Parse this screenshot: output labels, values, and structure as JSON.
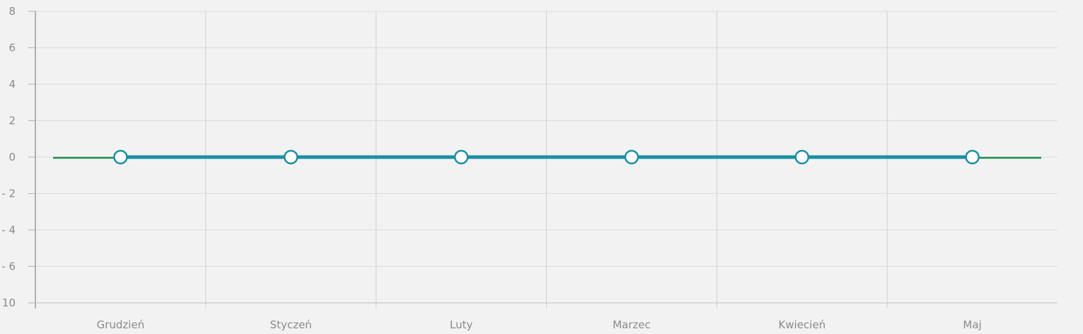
{
  "chart_data": {
    "type": "line",
    "categories": [
      "Grudzień",
      "Styczeń",
      "Luty",
      "Marzec",
      "Kwiecień",
      "Maj"
    ],
    "y_tick_labels": [
      "8",
      "6",
      "4",
      "2",
      "0",
      "- 2",
      "- 4",
      "- 6",
      "10"
    ],
    "ylim": [
      -8,
      8
    ],
    "grid": true,
    "series": [
      {
        "values": [
          0,
          0,
          0,
          0,
          0,
          0
        ],
        "color": "#1a8fa3",
        "marker": "circle"
      },
      {
        "values": [
          0,
          0,
          0,
          0,
          0,
          0
        ],
        "color": "#1e8b4b"
      }
    ]
  }
}
